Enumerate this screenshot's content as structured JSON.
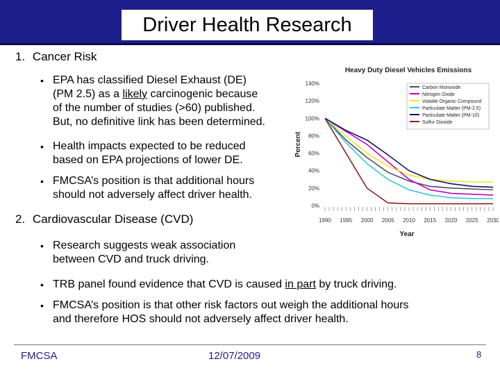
{
  "slide": {
    "title": "Driver Health Research",
    "section1": {
      "number": "1.",
      "heading": "Cancer Risk"
    },
    "s1_bullets": {
      "b1_l1_pre": "EPA has classified Diesel Exhaust (DE)",
      "b1_l2_pre": "(PM 2.5) as a ",
      "b1_l2_ul": "likely",
      "b1_l2_post": " carcinogenic because",
      "b1_l3": "of the number of studies (>60) published.",
      "b1_l4": "But, no definitive link has been determined.",
      "b2_l1": "Health impacts expected to be reduced",
      "b2_l2": "based on EPA projections of lower DE.",
      "b3_l1": "FMCSA’s position is that additional hours",
      "b3_l2": "should not adversely affect driver health."
    },
    "section2": {
      "number": "2.",
      "heading": "Cardiovascular Disease (CVD)"
    },
    "s2_bullets": {
      "b1_l1": "Research suggests weak association",
      "b1_l2": "between CVD and truck driving.",
      "b2_pre": "TRB panel found evidence that CVD is caused ",
      "b2_ul": "in part",
      "b2_post": " by truck driving.",
      "b3_l1": "FMCSA’s position is that other risk factors out weigh the additional hours",
      "b3_l2": "and therefore HOS should not adversely affect driver health."
    },
    "bullet_char": "•",
    "footer": {
      "left": "FMCSA",
      "date": "12/07/2009",
      "page": "8"
    }
  },
  "chart_data": {
    "type": "line",
    "title": "Heavy Duty Diesel Vehicles Emissions",
    "xlabel": "Year",
    "ylabel": "Percent",
    "x": [
      1990,
      1995,
      2000,
      2005,
      2010,
      2015,
      2020,
      2025,
      2030
    ],
    "x_tick_labels": [
      "1990",
      "1995",
      "2000",
      "2005",
      "2010",
      "2015",
      "2020",
      "2025",
      "2030"
    ],
    "y_tick_labels": [
      "0%",
      "20%",
      "40%",
      "60%",
      "80%",
      "100%",
      "120%",
      "140%"
    ],
    "ylim": [
      0,
      140
    ],
    "xlim": [
      1990,
      2030
    ],
    "grid": false,
    "legend_position": "top-right",
    "series": [
      {
        "name": "Carbon Monoxide",
        "color": "#4a4a6a",
        "values": [
          100,
          75,
          55,
          38,
          28,
          22,
          20,
          19,
          18
        ]
      },
      {
        "name": "Nitrogen Oxide",
        "color": "#c000c0",
        "values": [
          100,
          85,
          70,
          50,
          30,
          18,
          14,
          13,
          12
        ]
      },
      {
        "name": "Volatile Organic Compound",
        "color": "#e8e830",
        "values": [
          100,
          80,
          60,
          45,
          35,
          30,
          28,
          27,
          27
        ]
      },
      {
        "name": "Particulate Matter (PM-2.5)",
        "color": "#30c8d8",
        "values": [
          100,
          72,
          48,
          30,
          18,
          12,
          9,
          8,
          8
        ]
      },
      {
        "name": "Particulate Matter (PM-10)",
        "color": "#10106a",
        "values": [
          100,
          86,
          75,
          58,
          40,
          30,
          25,
          22,
          21
        ]
      },
      {
        "name": "Sulfur Dioxide",
        "color": "#8b2020",
        "values": [
          100,
          60,
          20,
          3,
          2,
          2,
          2,
          2,
          2
        ]
      }
    ]
  }
}
